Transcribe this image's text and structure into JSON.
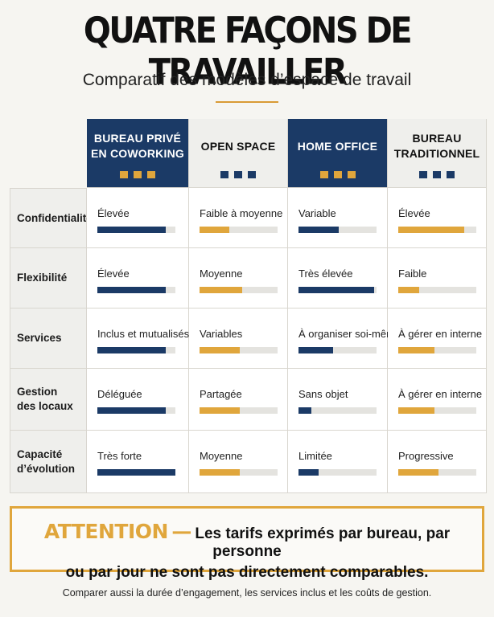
{
  "header": {
    "title": "QUATRE FAÇONS DE TRAVAILLER",
    "subtitle": "Comparatif des modèles d’espace de travail"
  },
  "columns": [
    {
      "label": "BUREAU PRIVÉ EN COWORKING",
      "style": "dark"
    },
    {
      "label": "OPEN SPACE",
      "style": "light"
    },
    {
      "label": "HOME OFFICE",
      "style": "dark"
    },
    {
      "label": "BUREAU TRADITIONNEL",
      "style": "light"
    }
  ],
  "rows": [
    {
      "label": "Confidentialité",
      "cells": [
        {
          "text": "Élevée",
          "level": 0.88,
          "color": "#1b3a66"
        },
        {
          "text": "Faible à moyenne",
          "level": 0.38,
          "color": "#e0a63c"
        },
        {
          "text": "Variable",
          "level": 0.52,
          "color": "#1b3a66"
        },
        {
          "text": "Élevée",
          "level": 0.85,
          "color": "#e0a63c"
        }
      ]
    },
    {
      "label": "Flexibilité",
      "cells": [
        {
          "text": "Élevée",
          "level": 0.88,
          "color": "#1b3a66"
        },
        {
          "text": "Moyenne",
          "level": 0.55,
          "color": "#e0a63c"
        },
        {
          "text": "Très élevée",
          "level": 0.97,
          "color": "#1b3a66"
        },
        {
          "text": "Faible",
          "level": 0.27,
          "color": "#e0a63c"
        }
      ]
    },
    {
      "label": "Services",
      "cells": [
        {
          "text": "Inclus et mutualisés",
          "level": 0.88,
          "color": "#1b3a66"
        },
        {
          "text": "Variables",
          "level": 0.52,
          "color": "#e0a63c"
        },
        {
          "text": "À organiser soi-même",
          "level": 0.44,
          "color": "#1b3a66"
        },
        {
          "text": "À gérer en interne",
          "level": 0.46,
          "color": "#e0a63c"
        }
      ]
    },
    {
      "label": "Gestion des locaux",
      "cells": [
        {
          "text": "Déléguée",
          "level": 0.88,
          "color": "#1b3a66"
        },
        {
          "text": "Partagée",
          "level": 0.52,
          "color": "#e0a63c"
        },
        {
          "text": "Sans objet",
          "level": 0.16,
          "color": "#1b3a66"
        },
        {
          "text": "À gérer en interne",
          "level": 0.46,
          "color": "#e0a63c"
        }
      ]
    },
    {
      "label": "Capacité d’évolution",
      "cells": [
        {
          "text": "Très forte",
          "level": 1.0,
          "color": "#1b3a66"
        },
        {
          "text": "Moyenne",
          "level": 0.52,
          "color": "#e0a63c"
        },
        {
          "text": "Limitée",
          "level": 0.26,
          "color": "#1b3a66"
        },
        {
          "text": "Progressive",
          "level": 0.52,
          "color": "#e0a63c"
        }
      ]
    }
  ],
  "attention": {
    "word": "ATTENTION",
    "dash": "—",
    "line1": "Les tarifs exprimés par bureau, par personne",
    "line2": "ou par jour ne sont pas directement comparables."
  },
  "footnote": "Comparer aussi la durée d’engagement, les services inclus et les coûts de gestion.",
  "colors": {
    "navy": "#1b3a66",
    "gold": "#e0a63c",
    "background": "#f6f5f1"
  }
}
